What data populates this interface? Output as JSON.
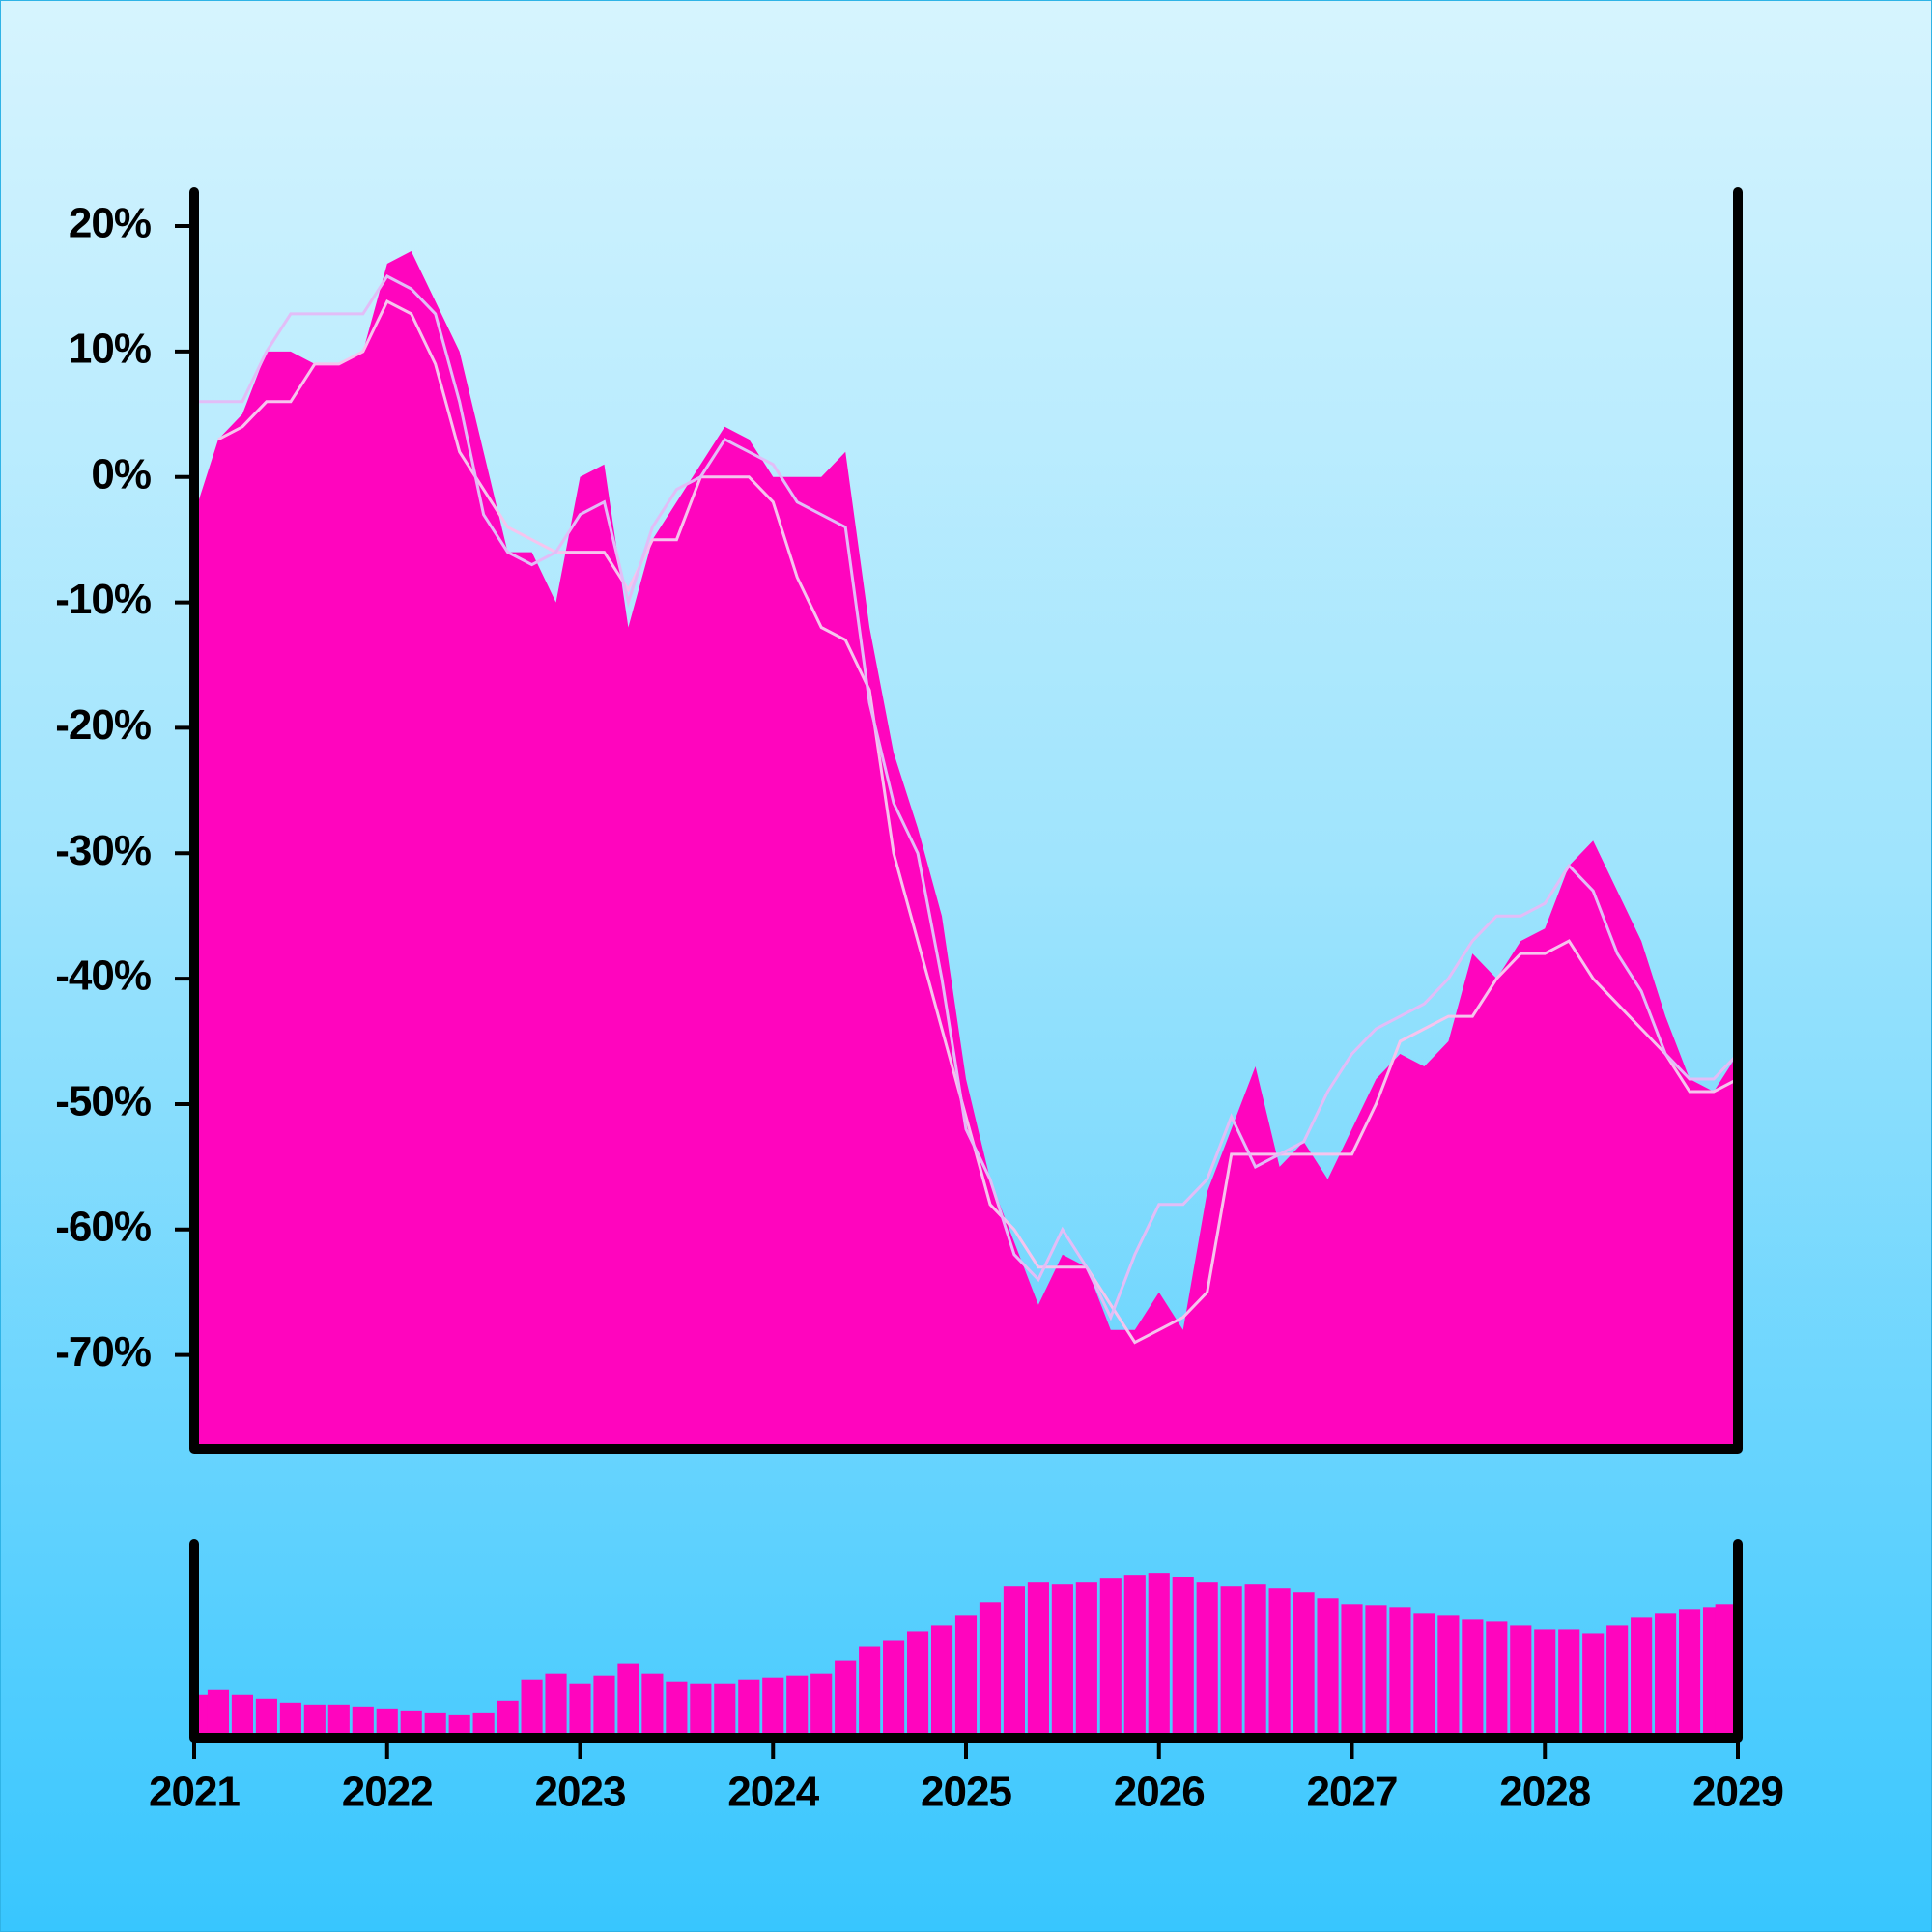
{
  "chart_data": [
    {
      "type": "area",
      "x": [
        2021,
        2021.125,
        2021.25,
        2021.375,
        2021.5,
        2021.625,
        2021.75,
        2021.875,
        2022,
        2022.125,
        2022.25,
        2022.375,
        2022.5,
        2022.625,
        2022.75,
        2022.875,
        2023,
        2023.125,
        2023.25,
        2023.375,
        2023.5,
        2023.625,
        2023.75,
        2023.875,
        2024,
        2024.125,
        2024.25,
        2024.375,
        2024.5,
        2024.625,
        2024.75,
        2024.875,
        2025,
        2025.125,
        2025.25,
        2025.375,
        2025.5,
        2025.625,
        2025.75,
        2025.875,
        2026,
        2026.125,
        2026.25,
        2026.375,
        2026.5,
        2026.625,
        2026.75,
        2026.875,
        2027,
        2027.125,
        2027.25,
        2027.375,
        2027.5,
        2027.625,
        2027.75,
        2027.875,
        2028,
        2028.125,
        2028.25,
        2028.375,
        2028.5,
        2028.625,
        2028.75,
        2028.875,
        2029
      ],
      "xlim": [
        2021,
        2029
      ],
      "ylim": [
        -77.5,
        22.7
      ],
      "yticks": [
        {
          "value": 20,
          "label": "20%"
        },
        {
          "value": 10,
          "label": "10%"
        },
        {
          "value": 0,
          "label": "0%"
        },
        {
          "value": -10,
          "label": "-10%"
        },
        {
          "value": -20,
          "label": "-20%"
        },
        {
          "value": -30,
          "label": "-30%"
        },
        {
          "value": -40,
          "label": "-40%"
        },
        {
          "value": -50,
          "label": "-50%"
        },
        {
          "value": -60,
          "label": "-60%"
        },
        {
          "value": -70,
          "label": "-70%"
        }
      ],
      "series": [
        {
          "kind": "area",
          "color": "#ff05be",
          "values": [
            -3,
            3,
            5,
            10,
            10,
            9,
            9,
            10,
            17,
            18,
            14,
            10,
            2,
            -6,
            -6,
            -10,
            0,
            1,
            -12,
            -5,
            -2,
            1,
            4,
            3,
            0,
            0,
            0,
            2,
            -12,
            -22,
            -28,
            -35,
            -48,
            -56,
            -61,
            -66,
            -62,
            -63,
            -68,
            -68,
            -65,
            -68,
            -57,
            -52,
            -47,
            -55,
            -53,
            -56,
            -52,
            -48,
            -46,
            -47,
            -45,
            -38,
            -40,
            -37,
            -36,
            -31,
            -29,
            -33,
            -37,
            -43,
            -48,
            -49,
            -46
          ]
        },
        {
          "kind": "line",
          "color": "#f6c4ee",
          "values": [
            null,
            3,
            4,
            6,
            6,
            9,
            9,
            10,
            14,
            13,
            9,
            2,
            -1,
            -4,
            -5,
            -6,
            -6,
            -6,
            -9,
            -5,
            -5,
            0,
            0,
            0,
            -2,
            -8,
            -12,
            -13,
            -17,
            -30,
            -37,
            -44,
            -51,
            -58,
            -60,
            -63,
            -63,
            -63,
            -66,
            -69,
            -68,
            -67,
            -65,
            -54,
            -54,
            -54,
            -54,
            -54,
            -54,
            -50,
            -45,
            -44,
            -43,
            -43,
            -40,
            -38,
            -38,
            -37,
            -40,
            -42,
            -44,
            -46,
            -49,
            -49,
            -48
          ]
        },
        {
          "kind": "line",
          "color": "#e2bdf7",
          "values": [
            6,
            6,
            6,
            10,
            13,
            13,
            13,
            13,
            16,
            15,
            13,
            6,
            -3,
            -6,
            -7,
            -6,
            -3,
            -2,
            -10,
            -4,
            -1,
            0,
            3,
            2,
            1,
            -2,
            -3,
            -4,
            -18,
            -26,
            -30,
            -40,
            -52,
            -56,
            -62,
            -64,
            -60,
            -63,
            -67,
            -62,
            -58,
            -58,
            -56,
            -51,
            -55,
            -54,
            -53,
            -49,
            -46,
            -44,
            -43,
            -42,
            -40,
            -37,
            -35,
            -35,
            -34,
            -31,
            -33,
            -38,
            -41,
            -46,
            -48,
            -48,
            -46
          ]
        }
      ]
    },
    {
      "type": "bar",
      "x": [
        2021,
        2021.125,
        2021.25,
        2021.375,
        2021.5,
        2021.625,
        2021.75,
        2021.875,
        2022,
        2022.125,
        2022.25,
        2022.375,
        2022.5,
        2022.625,
        2022.75,
        2022.875,
        2023,
        2023.125,
        2023.25,
        2023.375,
        2023.5,
        2023.625,
        2023.75,
        2023.875,
        2024,
        2024.125,
        2024.25,
        2024.375,
        2024.5,
        2024.625,
        2024.75,
        2024.875,
        2025,
        2025.125,
        2025.25,
        2025.375,
        2025.5,
        2025.625,
        2025.75,
        2025.875,
        2026,
        2026.125,
        2026.25,
        2026.375,
        2026.5,
        2026.625,
        2026.75,
        2026.875,
        2027,
        2027.125,
        2027.25,
        2027.375,
        2027.5,
        2027.625,
        2027.75,
        2027.875,
        2028,
        2028.125,
        2028.25,
        2028.375,
        2028.5,
        2028.625,
        2028.75,
        2028.875,
        2029
      ],
      "xlim": [
        2021,
        2029
      ],
      "xticks": [
        2021,
        2022,
        2023,
        2024,
        2025,
        2026,
        2027,
        2028,
        2029
      ],
      "ylim": [
        0,
        100
      ],
      "color": "#ff05be",
      "values": [
        22,
        25,
        22,
        20,
        18,
        17,
        17,
        16,
        15,
        14,
        13,
        12,
        13,
        19,
        30,
        33,
        28,
        32,
        38,
        33,
        29,
        28,
        28,
        30,
        31,
        32,
        33,
        40,
        47,
        50,
        55,
        58,
        63,
        70,
        78,
        80,
        79,
        80,
        82,
        84,
        85,
        83,
        80,
        78,
        79,
        77,
        75,
        72,
        69,
        68,
        67,
        64,
        63,
        61,
        60,
        58,
        56,
        56,
        54,
        58,
        62,
        64,
        66,
        67,
        69
      ]
    }
  ]
}
